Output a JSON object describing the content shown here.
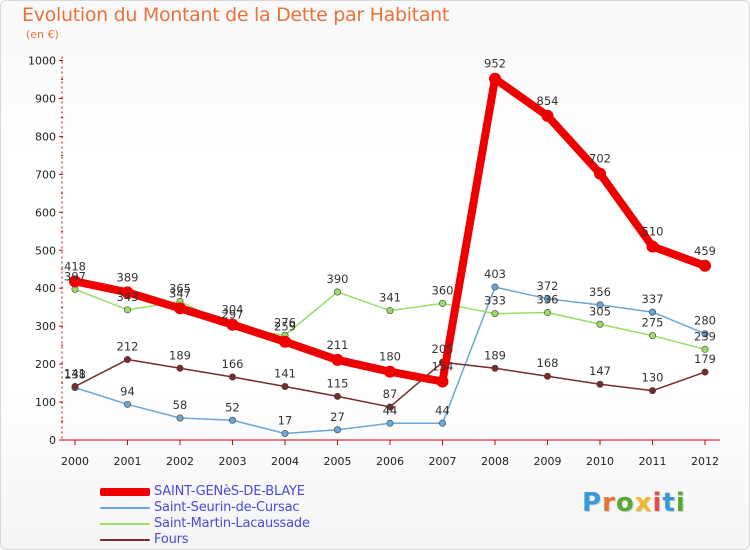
{
  "title": "Evolution du Montant de la Dette par Habitant",
  "subtitle": "(en €)",
  "brand": {
    "text": "Proxiti",
    "colors": [
      "#3a9ad9",
      "#e8733a",
      "#5aa832",
      "#f2b632",
      "#e84a4a",
      "#3a9ad9",
      "#5aa832"
    ]
  },
  "chart_data": {
    "type": "line",
    "x": [
      "2000",
      "2001",
      "2002",
      "2003",
      "2004",
      "2005",
      "2006",
      "2007",
      "2008",
      "2009",
      "2010",
      "2011",
      "2012"
    ],
    "ylim": [
      0,
      1000
    ],
    "yticks": [
      "0",
      "100",
      "200",
      "300",
      "400",
      "500",
      "600",
      "700",
      "800",
      "900",
      "1000"
    ],
    "grid": false,
    "legend_position": "bottom-left",
    "series": [
      {
        "name": "SAINT-GENèS-DE-BLAYE",
        "color": "#ee0000",
        "width": 8,
        "values": [
          418,
          389,
          347,
          304,
          259,
          211,
          180,
          154,
          952,
          854,
          702,
          510,
          459
        ],
        "labels": [
          "418",
          "389",
          "347",
          "304",
          "259",
          "211",
          "180",
          "154",
          "952",
          "854",
          "702",
          "510",
          "459"
        ]
      },
      {
        "name": "Saint-Seurin-de-Cursac",
        "color": "#6aa6d6",
        "width": 1.5,
        "values": [
          138,
          94,
          58,
          52,
          17,
          27,
          44,
          44,
          403,
          372,
          356,
          337,
          280
        ],
        "labels": [
          "138",
          "94",
          "58",
          "52",
          "17",
          "27",
          "44",
          "44",
          "403",
          "372",
          "356",
          "337",
          "280"
        ]
      },
      {
        "name": "Saint-Martin-Lacaussade",
        "color": "#99dd66",
        "width": 1.5,
        "values": [
          397,
          343,
          365,
          297,
          276,
          390,
          341,
          360,
          333,
          336,
          305,
          275,
          239
        ],
        "labels": [
          "397",
          "343",
          "365",
          "297",
          "276",
          "390",
          "341",
          "360",
          "333",
          "336",
          "305",
          "275",
          "239"
        ]
      },
      {
        "name": "Fours",
        "color": "#7a2a2a",
        "width": 1.5,
        "values": [
          141,
          212,
          189,
          166,
          141,
          115,
          87,
          205,
          189,
          168,
          147,
          130,
          179
        ],
        "labels": [
          "141",
          "212",
          "189",
          "166",
          "141",
          "115",
          "87",
          "205",
          "189",
          "168",
          "147",
          "130",
          "179"
        ]
      }
    ]
  }
}
